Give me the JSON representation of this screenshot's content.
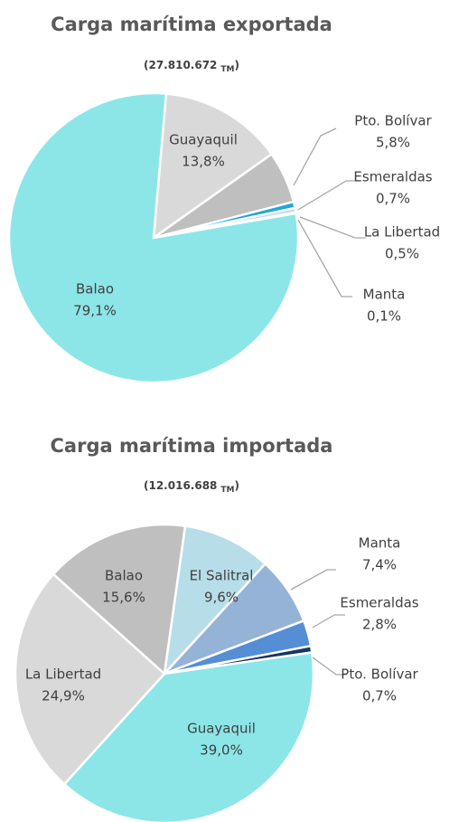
{
  "chart_data": [
    {
      "type": "pie",
      "title": "Carga marítima exportada",
      "subtitle": "(27.810.672",
      "subtitle_unit": "TM",
      "subtitle_close": ")",
      "categories": [
        "Guayaquil",
        "Pto. Bolívar",
        "Esmeraldas",
        "La Libertad",
        "Manta",
        "Balao"
      ],
      "values": [
        13.8,
        5.8,
        0.7,
        0.5,
        0.1,
        79.1
      ],
      "value_labels": [
        "13,8%",
        "5,8%",
        "0,7%",
        "0,5%",
        "0,1%",
        "79,1%"
      ],
      "colors": [
        "#d9d9d9",
        "#bfbfbf",
        "#1fa8d8",
        "#c6d9f1",
        "#404040",
        "#8ce6e8"
      ]
    },
    {
      "type": "pie",
      "title": "Carga marítima importada",
      "subtitle": "(12.016.688",
      "subtitle_unit": "TM",
      "subtitle_close": ")",
      "categories": [
        "El Salitral",
        "Manta",
        "Esmeraldas",
        "Pto. Bolívar",
        "Guayaquil",
        "La Libertad",
        "Balao"
      ],
      "values": [
        9.6,
        7.4,
        2.8,
        0.7,
        39.0,
        24.9,
        15.6
      ],
      "value_labels": [
        "9,6%",
        "7,4%",
        "2,8%",
        "0,7%",
        "39,0%",
        "24,9%",
        "15,6%"
      ],
      "colors": [
        "#b7dde8",
        "#95b3d7",
        "#558ed5",
        "#17375e",
        "#8ce6e8",
        "#d9d9d9",
        "#bfbfbf"
      ]
    }
  ]
}
